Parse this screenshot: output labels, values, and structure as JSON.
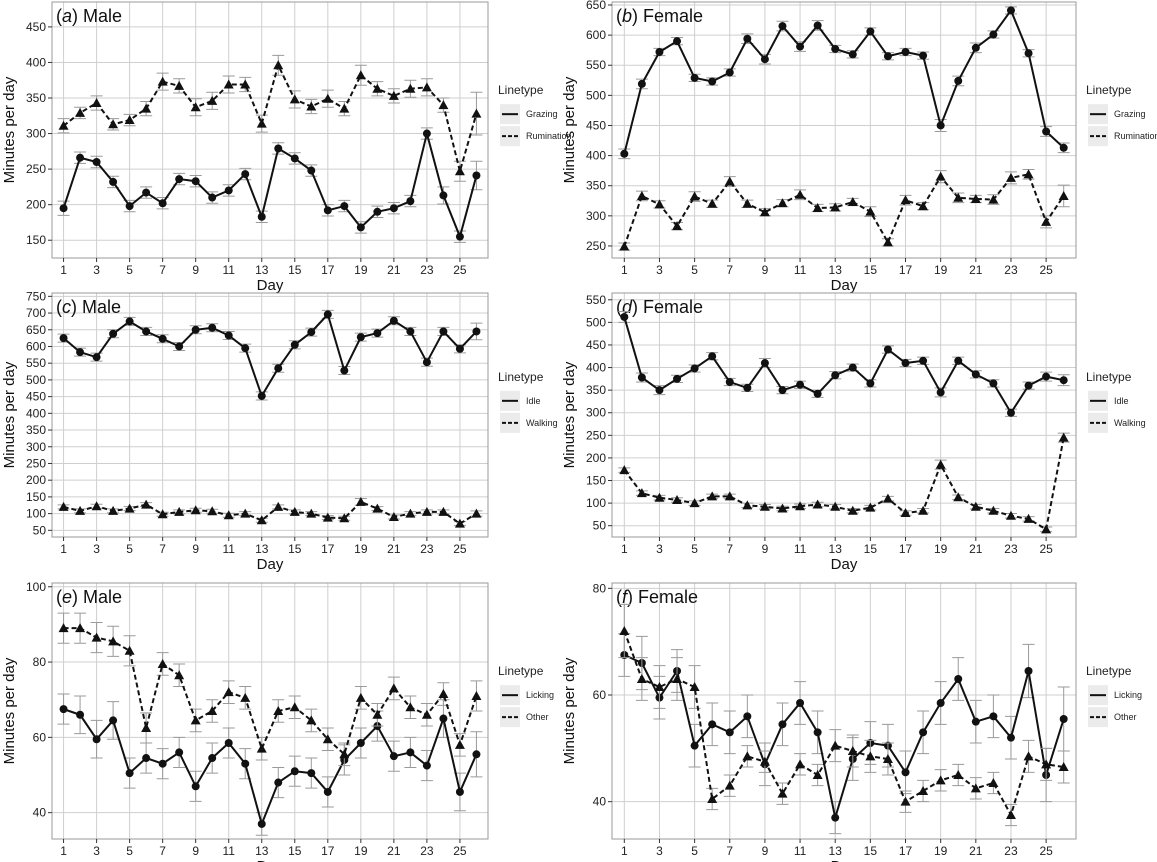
{
  "chart_data": [
    {
      "type": "line",
      "panel_letter": "a",
      "title": "Male",
      "xlabel": "Day",
      "ylabel": "Minutes per day",
      "ylim": [
        125,
        485
      ],
      "yticks": [
        150,
        200,
        250,
        300,
        350,
        400,
        450
      ],
      "legend_title": "Linetype",
      "x": [
        1,
        2,
        3,
        4,
        5,
        6,
        7,
        8,
        9,
        10,
        11,
        12,
        13,
        14,
        15,
        16,
        17,
        18,
        19,
        20,
        21,
        22,
        23,
        24,
        25,
        26
      ],
      "series": [
        {
          "name": "Grazing",
          "linestyle": "solid",
          "marker": "circle",
          "values": [
            195,
            266,
            260,
            232,
            198,
            217,
            202,
            236,
            233,
            210,
            220,
            243,
            183,
            279,
            265,
            248,
            192,
            198,
            168,
            190,
            195,
            205,
            300,
            213,
            155,
            241
          ],
          "err": [
            10,
            8,
            8,
            8,
            8,
            8,
            8,
            8,
            8,
            8,
            8,
            8,
            8,
            8,
            8,
            8,
            8,
            8,
            8,
            8,
            8,
            8,
            8,
            12,
            8,
            20
          ]
        },
        {
          "name": "Rumination",
          "linestyle": "dashed",
          "marker": "triangle",
          "values": [
            311,
            329,
            343,
            313,
            319,
            335,
            373,
            367,
            337,
            346,
            369,
            369,
            314,
            396,
            348,
            338,
            349,
            335,
            382,
            363,
            353,
            363,
            365,
            340,
            247,
            328
          ],
          "err": [
            10,
            8,
            10,
            8,
            8,
            10,
            12,
            10,
            12,
            12,
            12,
            10,
            12,
            14,
            12,
            10,
            12,
            10,
            14,
            10,
            10,
            12,
            12,
            10,
            14,
            30
          ]
        }
      ]
    },
    {
      "type": "line",
      "panel_letter": "b",
      "title": "Female",
      "xlabel": "Day",
      "ylabel": "Minutes per day",
      "ylim": [
        230,
        655
      ],
      "yticks": [
        250,
        300,
        350,
        400,
        450,
        500,
        550,
        600,
        650
      ],
      "legend_title": "Linetype",
      "x": [
        1,
        2,
        3,
        4,
        5,
        6,
        7,
        8,
        9,
        10,
        11,
        12,
        13,
        14,
        15,
        16,
        17,
        18,
        19,
        20,
        21,
        22,
        23,
        24,
        25,
        26
      ],
      "series": [
        {
          "name": "Grazing",
          "linestyle": "solid",
          "marker": "circle",
          "values": [
            403,
            519,
            572,
            590,
            529,
            523,
            538,
            594,
            560,
            615,
            581,
            616,
            577,
            568,
            606,
            565,
            572,
            566,
            450,
            524,
            579,
            601,
            641,
            570,
            440,
            413
          ],
          "err": [
            8,
            8,
            6,
            6,
            6,
            6,
            6,
            8,
            8,
            8,
            8,
            8,
            6,
            6,
            6,
            6,
            6,
            6,
            10,
            8,
            8,
            6,
            6,
            6,
            8,
            8
          ]
        },
        {
          "name": "Rumination",
          "linestyle": "dashed",
          "marker": "triangle",
          "values": [
            249,
            333,
            319,
            283,
            332,
            320,
            357,
            320,
            306,
            321,
            335,
            313,
            314,
            323,
            307,
            256,
            326,
            316,
            365,
            330,
            328,
            327,
            363,
            369,
            290,
            333
          ],
          "err": [
            6,
            8,
            6,
            6,
            8,
            6,
            8,
            6,
            6,
            6,
            8,
            6,
            6,
            6,
            8,
            6,
            8,
            6,
            10,
            8,
            6,
            8,
            10,
            8,
            10,
            18
          ]
        }
      ]
    },
    {
      "type": "line",
      "panel_letter": "c",
      "title": "Male",
      "xlabel": "Day",
      "ylabel": "Minutes per day",
      "ylim": [
        30,
        760
      ],
      "yticks": [
        50,
        100,
        150,
        200,
        250,
        300,
        350,
        400,
        450,
        500,
        550,
        600,
        650,
        700,
        750
      ],
      "legend_title": "Linetype",
      "x": [
        1,
        2,
        3,
        4,
        5,
        6,
        7,
        8,
        9,
        10,
        11,
        12,
        13,
        14,
        15,
        16,
        17,
        18,
        19,
        20,
        21,
        22,
        23,
        24,
        25,
        26
      ],
      "series": [
        {
          "name": "Idle",
          "linestyle": "solid",
          "marker": "circle",
          "values": [
            625,
            583,
            568,
            638,
            675,
            645,
            623,
            600,
            650,
            656,
            633,
            595,
            452,
            535,
            605,
            643,
            696,
            528,
            628,
            640,
            677,
            645,
            553,
            645,
            593,
            645
          ],
          "err": [
            12,
            12,
            12,
            12,
            12,
            12,
            12,
            12,
            12,
            12,
            12,
            12,
            12,
            12,
            12,
            12,
            12,
            12,
            12,
            12,
            12,
            12,
            12,
            12,
            12,
            25
          ]
        },
        {
          "name": "Walking",
          "linestyle": "dashed",
          "marker": "triangle",
          "values": [
            120,
            108,
            122,
            108,
            115,
            127,
            98,
            105,
            110,
            107,
            95,
            100,
            80,
            120,
            105,
            100,
            88,
            86,
            135,
            115,
            90,
            100,
            105,
            105,
            70,
            100
          ],
          "err": [
            6,
            6,
            6,
            6,
            6,
            6,
            6,
            6,
            6,
            6,
            6,
            6,
            6,
            6,
            6,
            6,
            6,
            6,
            10,
            6,
            6,
            6,
            6,
            6,
            6,
            8
          ]
        }
      ]
    },
    {
      "type": "line",
      "panel_letter": "d",
      "title": "Female",
      "xlabel": "Day",
      "ylabel": "Minutes per day",
      "ylim": [
        25,
        565
      ],
      "yticks": [
        50,
        100,
        150,
        200,
        250,
        300,
        350,
        400,
        450,
        500,
        550
      ],
      "legend_title": "Linetype",
      "x": [
        1,
        2,
        3,
        4,
        5,
        6,
        7,
        8,
        9,
        10,
        11,
        12,
        13,
        14,
        15,
        16,
        17,
        18,
        19,
        20,
        21,
        22,
        23,
        24,
        25,
        26
      ],
      "series": [
        {
          "name": "Idle",
          "linestyle": "solid",
          "marker": "circle",
          "values": [
            512,
            378,
            350,
            375,
            398,
            425,
            368,
            355,
            410,
            350,
            362,
            342,
            383,
            400,
            365,
            440,
            410,
            415,
            345,
            415,
            385,
            365,
            300,
            360,
            380,
            372
          ],
          "err": [
            12,
            10,
            10,
            8,
            8,
            8,
            8,
            8,
            10,
            8,
            8,
            8,
            8,
            8,
            8,
            8,
            8,
            8,
            10,
            8,
            8,
            8,
            8,
            8,
            10,
            12
          ]
        },
        {
          "name": "Walking",
          "linestyle": "dashed",
          "marker": "triangle",
          "values": [
            173,
            122,
            112,
            107,
            100,
            115,
            115,
            95,
            92,
            88,
            93,
            97,
            92,
            83,
            90,
            110,
            78,
            83,
            185,
            113,
            92,
            83,
            72,
            65,
            42,
            245
          ],
          "err": [
            5,
            5,
            5,
            5,
            5,
            5,
            5,
            5,
            5,
            5,
            5,
            5,
            5,
            5,
            5,
            5,
            5,
            5,
            10,
            5,
            5,
            5,
            5,
            5,
            5,
            10
          ]
        }
      ]
    },
    {
      "type": "line",
      "panel_letter": "e",
      "title": "Male",
      "xlabel": "Day",
      "ylabel": "Minutes per day",
      "ylim": [
        33,
        101
      ],
      "yticks": [
        40,
        60,
        80,
        100
      ],
      "legend_title": "Linetype",
      "x": [
        1,
        2,
        3,
        4,
        5,
        6,
        7,
        8,
        9,
        10,
        11,
        12,
        13,
        14,
        15,
        16,
        17,
        18,
        19,
        20,
        21,
        22,
        23,
        24,
        25,
        26
      ],
      "series": [
        {
          "name": "Licking",
          "linestyle": "solid",
          "marker": "circle",
          "values": [
            67.5,
            66,
            59.5,
            64.5,
            50.5,
            54.5,
            53,
            56,
            47,
            54.5,
            58.5,
            53,
            37,
            48,
            51,
            50.5,
            45.5,
            54,
            58.5,
            63,
            55,
            56,
            52.5,
            65,
            45.5,
            55.5
          ],
          "err": [
            4,
            5,
            5,
            5,
            4,
            4,
            4,
            4,
            4,
            4,
            4,
            4,
            3,
            4,
            4,
            4,
            4,
            4,
            4,
            4,
            4,
            4,
            4,
            5,
            5,
            6
          ]
        },
        {
          "name": "Other",
          "linestyle": "dashed",
          "marker": "triangle",
          "values": [
            89,
            89,
            86.5,
            85.5,
            83,
            62.5,
            79.5,
            76.5,
            64.5,
            67,
            72,
            70.5,
            57,
            67,
            68,
            64.5,
            59.5,
            55.5,
            70.5,
            66,
            73,
            68,
            66,
            71.5,
            58,
            71
          ],
          "err": [
            4,
            4,
            4,
            4,
            4,
            4,
            3,
            3,
            3,
            3,
            3,
            3,
            3,
            3,
            3,
            3,
            3,
            3,
            3,
            3,
            3,
            3,
            3,
            3,
            3,
            4
          ]
        }
      ]
    },
    {
      "type": "line",
      "panel_letter": "f",
      "title": "Female",
      "xlabel": "Day",
      "ylabel": "Minutes per day",
      "ylim": [
        33,
        81
      ],
      "yticks": [
        40,
        60,
        80
      ],
      "legend_title": "Linetype",
      "x": [
        1,
        2,
        3,
        4,
        5,
        6,
        7,
        8,
        9,
        10,
        11,
        12,
        13,
        14,
        15,
        16,
        17,
        18,
        19,
        20,
        21,
        22,
        23,
        24,
        25,
        26
      ],
      "series": [
        {
          "name": "Licking",
          "linestyle": "solid",
          "marker": "circle",
          "values": [
            67.5,
            66,
            59.5,
            64.5,
            50.5,
            54.5,
            53,
            56,
            47,
            54.5,
            58.5,
            53,
            37,
            48,
            51,
            50.5,
            45.5,
            53,
            58.5,
            63,
            55,
            56,
            52,
            64.5,
            45,
            55.5
          ],
          "err": [
            4,
            5,
            4,
            4,
            4,
            4,
            4,
            4,
            4,
            4,
            4,
            4,
            3,
            4,
            4,
            4,
            4,
            4,
            4,
            4,
            4,
            4,
            4,
            5,
            5,
            6
          ]
        },
        {
          "name": "Other",
          "linestyle": "dashed",
          "marker": "triangle",
          "values": [
            72,
            63,
            61.5,
            63,
            61.5,
            40.5,
            43,
            48.5,
            47.5,
            41.5,
            47,
            45,
            50.5,
            49.5,
            48.5,
            48,
            40,
            42,
            44,
            45,
            42.5,
            43.5,
            37.5,
            48.5,
            47,
            46.5
          ],
          "err": [
            5,
            4,
            4,
            4,
            4,
            2,
            2,
            2,
            2,
            2,
            2,
            2,
            3,
            3,
            3,
            3,
            2,
            2,
            2,
            2,
            2,
            2,
            2,
            3,
            3,
            3
          ]
        }
      ]
    }
  ]
}
